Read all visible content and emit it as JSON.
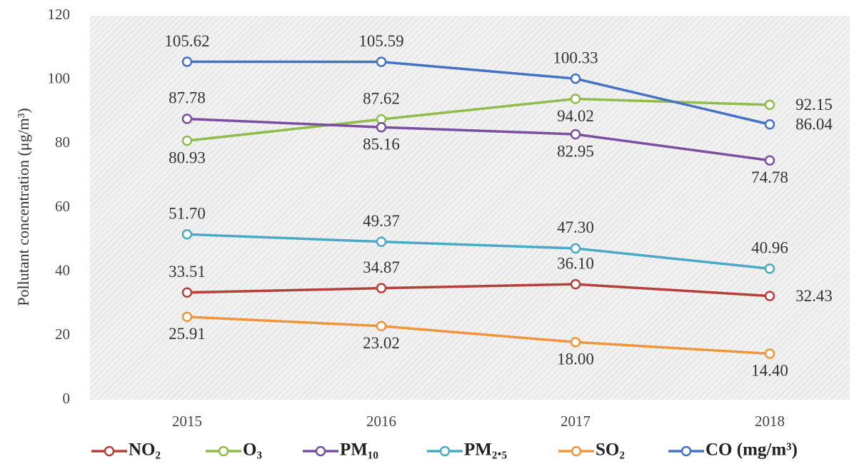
{
  "chart_data": {
    "type": "line",
    "y_label": "Pollutant concentration (μg/m³)",
    "categories": [
      "2015",
      "2016",
      "2017",
      "2018"
    ],
    "ylim": [
      0,
      120
    ],
    "yticks": [
      0,
      20,
      40,
      60,
      80,
      100,
      120
    ],
    "series": [
      {
        "name": "NO₂",
        "color": "#b5403a",
        "values": [
          33.51,
          34.87,
          36.1,
          32.43
        ],
        "value_labels": [
          "33.51",
          "34.87",
          "36.10",
          "32.43"
        ]
      },
      {
        "name": "O₃",
        "color": "#8fbc4a",
        "values": [
          80.93,
          87.62,
          94.02,
          92.15
        ],
        "value_labels": [
          "80.93",
          "87.62",
          "94.02",
          "92.15"
        ]
      },
      {
        "name": "PM₁₀",
        "color": "#7b4fa0",
        "values": [
          87.78,
          85.16,
          82.95,
          74.78
        ],
        "value_labels": [
          "87.78",
          "85.16",
          "82.95",
          "74.78"
        ]
      },
      {
        "name": "PM₂.₅",
        "color": "#4aaac6",
        "values": [
          51.7,
          49.37,
          47.3,
          40.96
        ],
        "value_labels": [
          "51.70",
          "49.37",
          "47.30",
          "40.96"
        ]
      },
      {
        "name": "SO₂",
        "color": "#f0953a",
        "values": [
          25.91,
          23.02,
          18.0,
          14.4
        ],
        "value_labels": [
          "25.91",
          "23.02",
          "18.00",
          "14.40"
        ]
      },
      {
        "name": "CO (mg/m³)",
        "color": "#4472c4",
        "values": [
          105.62,
          105.59,
          100.33,
          86.04
        ],
        "value_labels": [
          "105.62",
          "105.59",
          "100.33",
          "86.04"
        ]
      }
    ]
  }
}
